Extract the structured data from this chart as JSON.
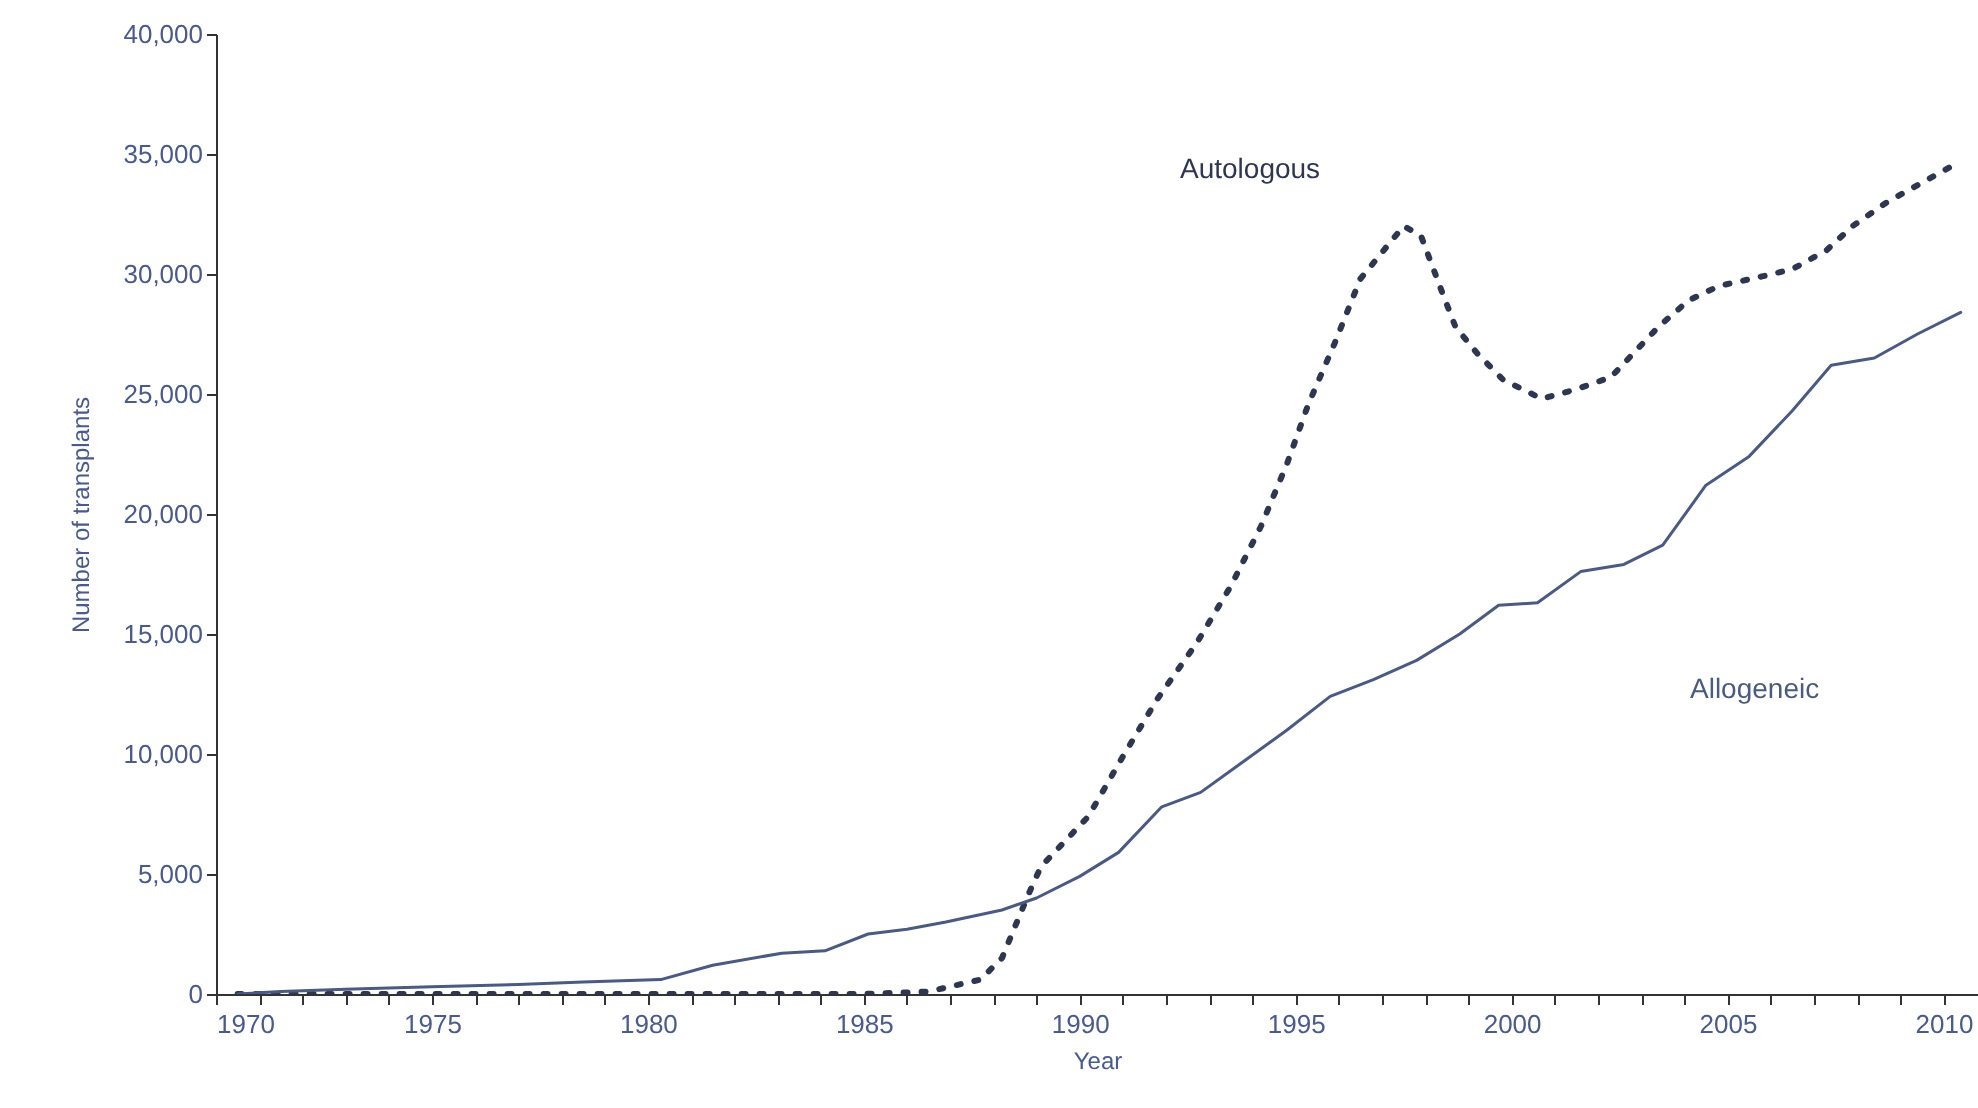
{
  "chart_data": {
    "type": "line",
    "xlabel": "Year",
    "ylabel": "Number of transplants",
    "xlim": [
      1970,
      2010.8
    ],
    "ylim": [
      0,
      40000
    ],
    "xticks": [
      1970,
      {
        "value": 1971,
        "label": null
      },
      {
        "value": 1972,
        "label": null
      },
      {
        "value": 1973,
        "label": null
      },
      {
        "value": 1974,
        "label": null
      },
      1975,
      {
        "value": 1976,
        "label": null
      },
      {
        "value": 1977,
        "label": null
      },
      {
        "value": 1978,
        "label": null
      },
      {
        "value": 1979,
        "label": null
      },
      1980,
      {
        "value": 1981,
        "label": null
      },
      {
        "value": 1982,
        "label": null
      },
      {
        "value": 1983,
        "label": null
      },
      {
        "value": 1984,
        "label": null
      },
      1985,
      {
        "value": 1986,
        "label": null
      },
      {
        "value": 1987,
        "label": null
      },
      {
        "value": 1988,
        "label": null
      },
      {
        "value": 1989,
        "label": null
      },
      1990,
      {
        "value": 1991,
        "label": null
      },
      {
        "value": 1992,
        "label": null
      },
      {
        "value": 1993,
        "label": null
      },
      {
        "value": 1994,
        "label": null
      },
      1995,
      {
        "value": 1996,
        "label": null
      },
      {
        "value": 1997,
        "label": null
      },
      {
        "value": 1998,
        "label": null
      },
      {
        "value": 1999,
        "label": null
      },
      2000,
      {
        "value": 2001,
        "label": null
      },
      {
        "value": 2002,
        "label": null
      },
      {
        "value": 2003,
        "label": null
      },
      {
        "value": 2004,
        "label": null
      },
      2005,
      {
        "value": 2006,
        "label": null
      },
      {
        "value": 2007,
        "label": null
      },
      {
        "value": 2008,
        "label": null
      },
      {
        "value": 2009,
        "label": null
      },
      2010
    ],
    "yticks": [
      {
        "value": 0,
        "label": "0"
      },
      {
        "value": 5000,
        "label": "5,000"
      },
      {
        "value": 10000,
        "label": "10,000"
      },
      {
        "value": 15000,
        "label": "15,000"
      },
      {
        "value": 20000,
        "label": "20,000"
      },
      {
        "value": 25000,
        "label": "25,000"
      },
      {
        "value": 30000,
        "label": "30,000"
      },
      {
        "value": 35000,
        "label": "35,000"
      },
      {
        "value": 40000,
        "label": "40,000"
      }
    ],
    "grid": false,
    "series": [
      {
        "name": "Autologous",
        "color": "#2f3650",
        "line_style": "dotted",
        "x": [
          1970.5,
          1975,
          1980,
          1985,
          1986.5,
          1987.7,
          1988.2,
          1988.5,
          1988.8,
          1989.1,
          1990.2,
          1991.0,
          1991.8,
          1992.7,
          1993.5,
          1994.2,
          1994.8,
          1995.3,
          1995.9,
          1996.5,
          1997.0,
          1997.5,
          1997.9,
          1998.4,
          1998.7,
          1999.2,
          1999.8,
          2000.7,
          2001.5,
          2002.3,
          2003.4,
          2004.1,
          2004.8,
          2005.8,
          2006.5,
          2007.3,
          2007.9,
          2008.7,
          2009.5,
          2010.2
        ],
        "values": [
          0,
          0,
          0,
          0,
          100,
          600,
          1500,
          2800,
          4100,
          5300,
          7400,
          9900,
          12300,
          14600,
          17000,
          19500,
          22100,
          24600,
          27100,
          29800,
          30900,
          32000,
          31600,
          29200,
          27800,
          26700,
          25600,
          24800,
          25200,
          25700,
          27800,
          28900,
          29500,
          29900,
          30200,
          31000,
          32000,
          33000,
          33800,
          34500
        ]
      },
      {
        "name": "Allogeneic",
        "color": "#4a5a80",
        "line_style": "solid",
        "x": [
          1970.5,
          1971.5,
          1973,
          1975,
          1977,
          1978.5,
          1980.3,
          1981.5,
          1983.1,
          1984.1,
          1985.1,
          1986,
          1986.9,
          1988.2,
          1989,
          1990,
          1990.9,
          1991.9,
          1992.8,
          1993.8,
          1994.8,
          1995.8,
          1996.8,
          1997.8,
          1998.8,
          1999.7,
          2000.6,
          2001.6,
          2002.6,
          2003.5,
          2004.5,
          2005.5,
          2006.5,
          2007.4,
          2008.4,
          2009.4,
          2010.4
        ],
        "values": [
          0,
          100,
          200,
          300,
          400,
          500,
          600,
          1200,
          1700,
          1800,
          2500,
          2700,
          3000,
          3500,
          4000,
          4900,
          5900,
          7800,
          8400,
          9700,
          11000,
          12400,
          13100,
          13900,
          15000,
          16200,
          16300,
          17600,
          17900,
          18700,
          21200,
          22400,
          24300,
          26200,
          26500,
          27500,
          28400
        ]
      }
    ]
  }
}
